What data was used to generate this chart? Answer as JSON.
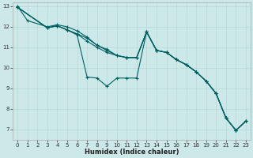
{
  "xlabel": "Humidex (Indice chaleur)",
  "ylabel": "",
  "bg_color": "#cde8e8",
  "grid_color": "#b8d8d8",
  "line_color": "#006060",
  "marker_color": "#006060",
  "xlim": [
    -0.5,
    23.5
  ],
  "ylim": [
    6.5,
    13.2
  ],
  "xticks": [
    0,
    1,
    2,
    3,
    4,
    5,
    6,
    7,
    8,
    9,
    10,
    11,
    12,
    13,
    14,
    15,
    16,
    17,
    18,
    19,
    20,
    21,
    22,
    23
  ],
  "yticks": [
    7,
    8,
    9,
    10,
    11,
    12,
    13
  ],
  "lines": [
    [
      [
        0,
        13.0
      ],
      [
        1,
        12.3
      ],
      [
        3,
        12.0
      ],
      [
        4,
        12.1
      ],
      [
        5,
        12.0
      ],
      [
        6,
        11.8
      ],
      [
        7,
        11.5
      ],
      [
        8,
        11.1
      ],
      [
        9,
        10.9
      ],
      [
        10,
        10.6
      ],
      [
        11,
        10.5
      ],
      [
        12,
        10.5
      ],
      [
        13,
        11.75
      ],
      [
        14,
        10.85
      ],
      [
        15,
        10.75
      ],
      [
        16,
        10.4
      ],
      [
        17,
        10.15
      ],
      [
        18,
        9.8
      ],
      [
        19,
        9.35
      ],
      [
        20,
        8.75
      ],
      [
        21,
        7.55
      ],
      [
        22,
        6.95
      ],
      [
        23,
        7.4
      ]
    ],
    [
      [
        0,
        12.95
      ],
      [
        3,
        11.95
      ],
      [
        4,
        12.05
      ],
      [
        5,
        11.85
      ],
      [
        6,
        11.6
      ],
      [
        7,
        9.55
      ],
      [
        8,
        9.5
      ],
      [
        9,
        9.1
      ],
      [
        10,
        9.5
      ],
      [
        11,
        9.5
      ],
      [
        12,
        9.5
      ],
      [
        13,
        11.75
      ],
      [
        14,
        10.85
      ],
      [
        15,
        10.75
      ],
      [
        16,
        10.4
      ],
      [
        17,
        10.15
      ],
      [
        18,
        9.8
      ],
      [
        19,
        9.35
      ],
      [
        20,
        8.75
      ],
      [
        21,
        7.55
      ],
      [
        22,
        6.95
      ],
      [
        23,
        7.4
      ]
    ],
    [
      [
        0,
        12.95
      ],
      [
        3,
        11.95
      ],
      [
        4,
        12.05
      ],
      [
        5,
        11.85
      ],
      [
        6,
        11.65
      ],
      [
        7,
        11.45
      ],
      [
        8,
        11.1
      ],
      [
        9,
        10.85
      ],
      [
        10,
        10.6
      ],
      [
        11,
        10.5
      ],
      [
        12,
        10.5
      ],
      [
        13,
        11.75
      ],
      [
        14,
        10.85
      ],
      [
        15,
        10.75
      ],
      [
        16,
        10.4
      ],
      [
        17,
        10.15
      ],
      [
        18,
        9.8
      ],
      [
        19,
        9.35
      ],
      [
        20,
        8.75
      ],
      [
        21,
        7.55
      ],
      [
        22,
        6.95
      ],
      [
        23,
        7.4
      ]
    ],
    [
      [
        0,
        12.95
      ],
      [
        3,
        11.95
      ],
      [
        4,
        12.05
      ],
      [
        5,
        11.85
      ],
      [
        6,
        11.65
      ],
      [
        7,
        11.3
      ],
      [
        8,
        11.0
      ],
      [
        9,
        10.75
      ],
      [
        10,
        10.6
      ],
      [
        11,
        10.5
      ],
      [
        12,
        10.5
      ],
      [
        13,
        11.75
      ],
      [
        14,
        10.85
      ],
      [
        15,
        10.75
      ],
      [
        16,
        10.4
      ],
      [
        17,
        10.15
      ],
      [
        18,
        9.8
      ],
      [
        19,
        9.35
      ],
      [
        20,
        8.75
      ],
      [
        21,
        7.55
      ],
      [
        22,
        6.95
      ],
      [
        23,
        7.4
      ]
    ]
  ]
}
